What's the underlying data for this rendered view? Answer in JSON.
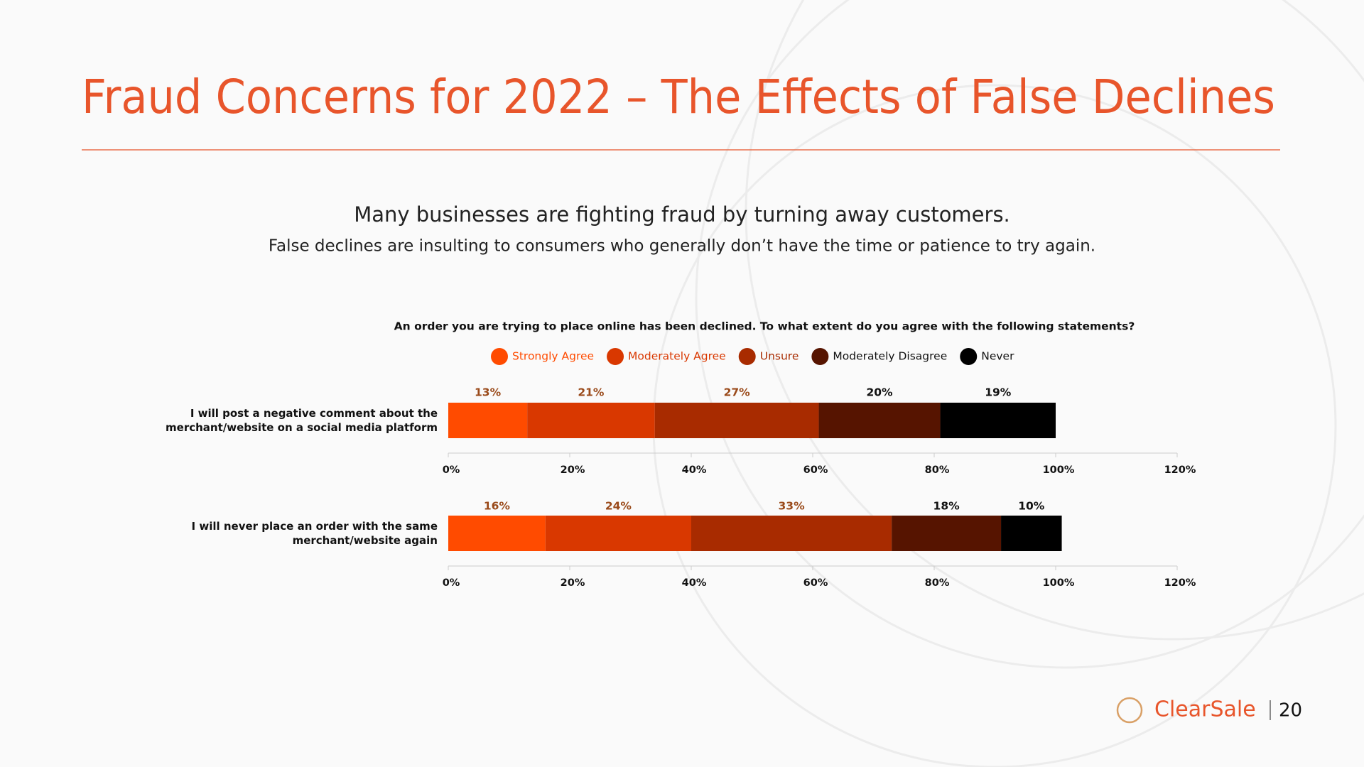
{
  "slide": {
    "title": "Fraud Concerns for 2022 – The Effects of False Declines",
    "subtitle": "Many businesses are fighting fraud by turning away customers.",
    "text": "False declines are insulting to consumers who generally don’t have the time or patience to try again.",
    "logo": "ClearSale",
    "page": "20"
  },
  "chart_data": [
    {
      "type": "stacked-barh",
      "title": "An order you are trying to place online has been declined. To what extent do you agree with the following statements?",
      "categories": [
        "I will post a negative comment about the merchant/website on a social media platform"
      ],
      "series": [
        {
          "name": "Strongly Agree",
          "color": "#ff4b00",
          "values": [
            13
          ],
          "value_labels": [
            "13%"
          ]
        },
        {
          "name": "Moderately Agree",
          "color": "#d93800",
          "values": [
            21
          ],
          "value_labels": [
            "21%"
          ]
        },
        {
          "name": "Unsure",
          "color": "#a82b00",
          "values": [
            27
          ],
          "value_labels": [
            "27%"
          ]
        },
        {
          "name": "Moderately Disagree",
          "color": "#561400",
          "values": [
            20
          ],
          "value_labels": [
            "20%"
          ]
        },
        {
          "name": "Never",
          "color": "#000000",
          "values": [
            19
          ],
          "value_labels": [
            "19%"
          ]
        }
      ],
      "xlim": [
        0,
        120
      ],
      "xticks": [
        {
          "value": 0,
          "label": "0%"
        },
        {
          "value": 20,
          "label": "20%"
        },
        {
          "value": 40,
          "label": "40%"
        },
        {
          "value": 60,
          "label": "60%"
        },
        {
          "value": 80,
          "label": "80%"
        },
        {
          "value": 100,
          "label": "100%"
        },
        {
          "value": 120,
          "label": "120%"
        }
      ]
    },
    {
      "type": "stacked-barh",
      "categories": [
        "I will never place an order with the same merchant/website again"
      ],
      "series": [
        {
          "name": "Strongly Agree",
          "color": "#ff4b00",
          "values": [
            16
          ],
          "value_labels": [
            "16%"
          ]
        },
        {
          "name": "Moderately Agree",
          "color": "#d93800",
          "values": [
            24
          ],
          "value_labels": [
            "24%"
          ]
        },
        {
          "name": "Unsure",
          "color": "#a82b00",
          "values": [
            33
          ],
          "value_labels": [
            "33%"
          ]
        },
        {
          "name": "Moderately Disagree",
          "color": "#561400",
          "values": [
            18
          ],
          "value_labels": [
            "18%"
          ]
        },
        {
          "name": "Never",
          "color": "#000000",
          "values": [
            10
          ],
          "value_labels": [
            "10%"
          ]
        }
      ],
      "xlim": [
        0,
        120
      ],
      "xticks": [
        {
          "value": 0,
          "label": "0%"
        },
        {
          "value": 20,
          "label": "20%"
        },
        {
          "value": 40,
          "label": "40%"
        },
        {
          "value": 60,
          "label": "60%"
        },
        {
          "value": 80,
          "label": "80%"
        },
        {
          "value": 100,
          "label": "100%"
        },
        {
          "value": 120,
          "label": "120%"
        }
      ]
    }
  ]
}
